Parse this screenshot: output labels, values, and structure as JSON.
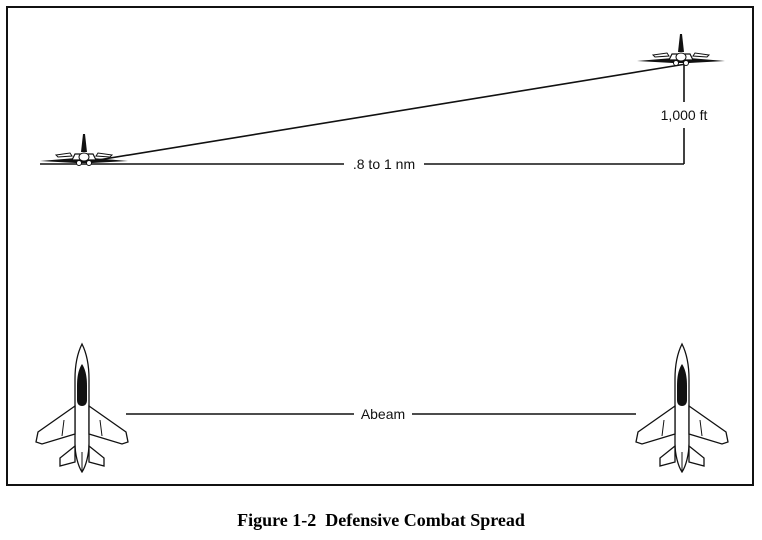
{
  "diagram": {
    "labels": {
      "range": ".8 to 1 nm",
      "altitude": "1,000 ft",
      "abeam": "Abeam"
    },
    "icons": {
      "side_view": "jet-side-view-icon",
      "top_view": "jet-top-view-icon"
    }
  },
  "caption": "Figure 1-2  Defensive Combat Spread"
}
